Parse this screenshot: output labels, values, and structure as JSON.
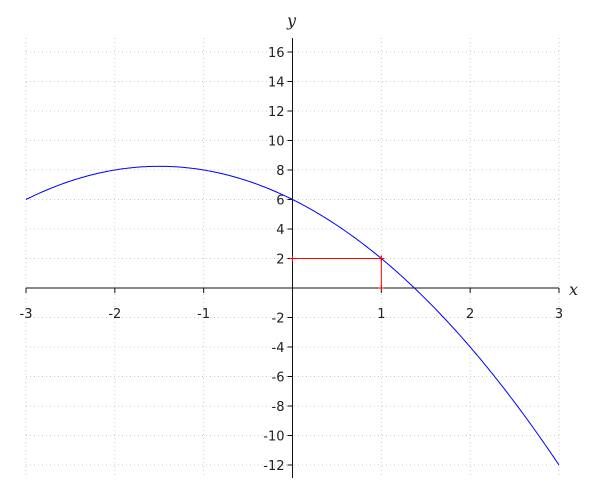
{
  "chart_data": {
    "type": "line",
    "title": "",
    "xlabel": "x",
    "ylabel": "y",
    "xlim": [
      -3,
      3
    ],
    "ylim": [
      -13,
      17
    ],
    "grid": true,
    "x_ticks": [
      -3,
      -2,
      -1,
      1,
      2,
      3
    ],
    "y_ticks": [
      -12,
      -10,
      -8,
      -6,
      -4,
      -2,
      2,
      4,
      6,
      8,
      10,
      12,
      14,
      16
    ],
    "x_tick_labels": [
      "-3",
      "-2",
      "-1",
      "1",
      "2",
      "3"
    ],
    "y_tick_labels": [
      "-12",
      "-10",
      "-8",
      "-6",
      "-4",
      "-2",
      "2",
      "4",
      "6",
      "8",
      "10",
      "12",
      "14",
      "16"
    ],
    "series": [
      {
        "function": "-x^2 - 3x + 6",
        "color": "#0000ff",
        "key_points": [
          [
            -3,
            6
          ],
          [
            -1.5,
            8.25
          ],
          [
            0,
            6
          ],
          [
            1,
            2
          ],
          [
            3,
            -12
          ]
        ]
      }
    ],
    "annotations": [
      {
        "type": "segment",
        "from": [
          0,
          2
        ],
        "to": [
          1,
          2
        ],
        "color": "#ff0000"
      },
      {
        "type": "segment",
        "from": [
          1,
          2
        ],
        "to": [
          1,
          0
        ],
        "color": "#ff0000"
      }
    ]
  }
}
